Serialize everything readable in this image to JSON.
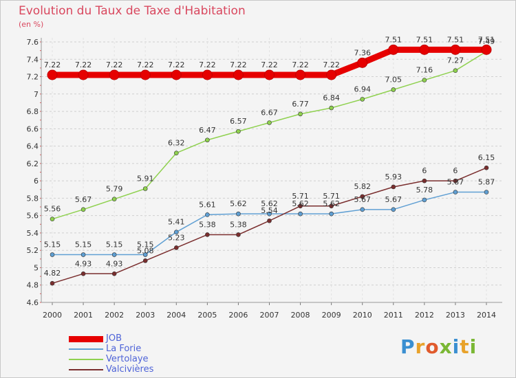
{
  "header": {
    "title": "Evolution du Taux de Taxe d'Habitation",
    "unit_label": "(en %)"
  },
  "brand": {
    "text": "Proxiti",
    "letter_colors": [
      "#3a8fd1",
      "#e8a22a",
      "#e05a2c",
      "#7ab734",
      "#3a8fd1",
      "#e8a22a",
      "#7ab734"
    ]
  },
  "chart_data": {
    "type": "line",
    "title": "Evolution du Taux de Taxe d'Habitation",
    "ylabel": "(en %)",
    "xlabel": "",
    "x": [
      "2000",
      "2001",
      "2002",
      "2003",
      "2004",
      "2005",
      "2006",
      "2007",
      "2008",
      "2009",
      "2010",
      "2011",
      "2012",
      "2013",
      "2014"
    ],
    "ylim": [
      4.6,
      7.6
    ],
    "y_ticks": [
      "4.6",
      "4.8",
      "5",
      "5.2",
      "5.4",
      "5.6",
      "5.8",
      "6",
      "6.2",
      "6.4",
      "6.6",
      "6.8",
      "7",
      "7.2",
      "7.4",
      "7.6"
    ],
    "grid": "horizontal dashed",
    "legend_position": "bottom-left",
    "series": [
      {
        "name": "JOB",
        "color": "#e60000",
        "values": [
          7.22,
          7.22,
          7.22,
          7.22,
          7.22,
          7.22,
          7.22,
          7.22,
          7.22,
          7.22,
          7.36,
          7.51,
          7.51,
          7.51,
          7.51
        ],
        "labels": [
          "7.22",
          "7.22",
          "7.22",
          "7.22",
          "7.22",
          "7.22",
          "7.22",
          "7.22",
          "7.22",
          "7.22",
          "7.36",
          "7.51",
          "7.51",
          "7.51",
          "7.51"
        ]
      },
      {
        "name": "La Forie",
        "color": "#5f9fd3",
        "values": [
          5.15,
          5.15,
          5.15,
          5.15,
          5.41,
          5.61,
          5.62,
          5.62,
          5.62,
          5.62,
          5.67,
          5.67,
          5.78,
          5.87,
          5.87
        ],
        "labels": [
          "5.15",
          "5.15",
          "5.15",
          "5.15",
          "5.41",
          "5.61",
          "5.62",
          "5.62",
          "5.62",
          "5.62",
          "5.67",
          "5.67",
          "5.78",
          "5.87",
          "5.87"
        ]
      },
      {
        "name": "Vertolaye",
        "color": "#8fd14f",
        "values": [
          5.56,
          5.67,
          5.79,
          5.91,
          6.32,
          6.47,
          6.57,
          6.67,
          6.77,
          6.84,
          6.94,
          7.05,
          7.16,
          7.27,
          7.49
        ],
        "labels": [
          "5.56",
          "5.67",
          "5.79",
          "5.91",
          "6.32",
          "6.47",
          "6.57",
          "6.67",
          "6.77",
          "6.84",
          "6.94",
          "7.05",
          "7.16",
          "7.27",
          "7.49"
        ]
      },
      {
        "name": "Valcivières",
        "color": "#7a2e2e",
        "values": [
          4.82,
          4.93,
          4.93,
          5.08,
          5.23,
          5.38,
          5.38,
          5.54,
          5.71,
          5.71,
          5.82,
          5.93,
          6.0,
          6.0,
          6.15
        ],
        "labels": [
          "4.82",
          "4.93",
          "4.93",
          "5.08",
          "5.23",
          "5.38",
          "5.38",
          "5.54",
          "5.71",
          "5.71",
          "5.82",
          "5.93",
          "6",
          "6",
          "6.15"
        ]
      }
    ]
  }
}
